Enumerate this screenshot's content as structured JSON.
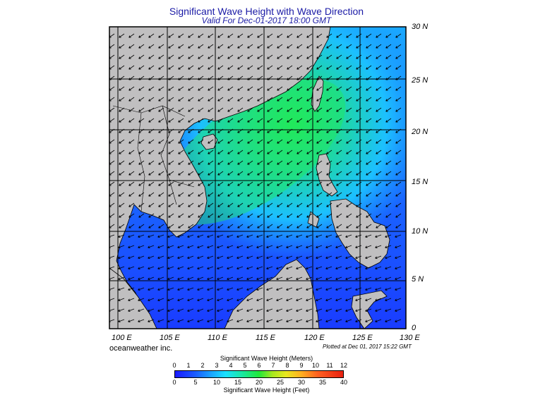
{
  "title": "Significant Wave Height with Wave Direction",
  "subtitle": "Valid For Dec-01-2017 18:00 GMT",
  "lat_labels": [
    "30 N",
    "25 N",
    "20 N",
    "15 N",
    "10 N",
    "5 N",
    "0"
  ],
  "lon_labels": [
    "100 E",
    "105 E",
    "110 E",
    "115 E",
    "120 E",
    "125 E",
    "130 E"
  ],
  "credit": "oceanweather inc.",
  "plotted": "Plotted at Dec 01, 2017 15:22 GMT",
  "scale": {
    "meters_title": "Significant Wave Height (Meters)",
    "feet_title": "Significant Wave Height (Feet)",
    "meters_ticks": [
      "0",
      "1",
      "2",
      "3",
      "4",
      "5",
      "6",
      "7",
      "8",
      "9",
      "10",
      "11",
      "12"
    ],
    "feet_ticks": [
      "0",
      "5",
      "10",
      "15",
      "20",
      "25",
      "30",
      "35",
      "40"
    ]
  },
  "colors": {
    "land": "#c0bfc0",
    "ocean_low": "#1a3cff",
    "ocean_mid": "#1cc0ff",
    "ocean_high": "#22e85a",
    "grid": "#000000",
    "title": "#1a1aa6"
  },
  "map_extent": {
    "lon_min": 99,
    "lon_max": 130,
    "lat_min": 0,
    "lat_max": 30
  }
}
